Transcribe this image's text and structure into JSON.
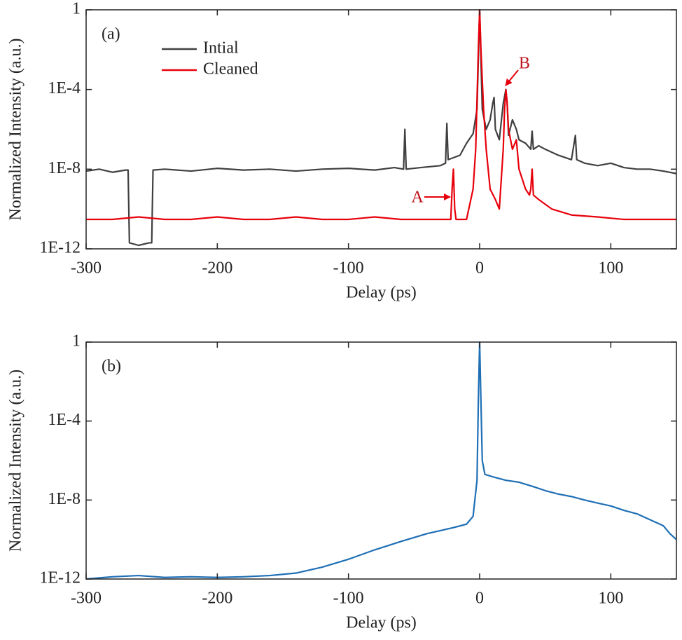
{
  "chart_data": [
    {
      "type": "line",
      "panel_label": "(a)",
      "x_label": "Delay (ps)",
      "y_label": "Normalized Intensity (a.u.)",
      "xlim": [
        -300,
        150
      ],
      "xticks": [
        -300,
        -200,
        -100,
        0,
        100
      ],
      "ylim": [
        1e-12,
        1
      ],
      "yticks": [
        {
          "value": 1e-12,
          "label": "1E-12"
        },
        {
          "value": 1e-08,
          "label": "1E-8"
        },
        {
          "value": 0.0001,
          "label": "1E-4"
        },
        1
      ],
      "log_y": true,
      "legend": "upper left",
      "annotations": [
        "A",
        "B"
      ],
      "series": [
        {
          "name": "Intial",
          "color": "#404040",
          "x": [
            -300,
            -290,
            -280,
            -270,
            -268,
            -267,
            -260,
            -252,
            -250,
            -249,
            -240,
            -220,
            -200,
            -180,
            -160,
            -140,
            -120,
            -100,
            -80,
            -65,
            -58,
            -57,
            -56,
            -45,
            -30,
            -26,
            -25,
            -24,
            -15,
            -10,
            -5,
            -2,
            0,
            2,
            5,
            8,
            10,
            11,
            12,
            15,
            18,
            20,
            21,
            22,
            25,
            28,
            30,
            35,
            39,
            40,
            41,
            45,
            50,
            60,
            70,
            73,
            74,
            80,
            90,
            100,
            110,
            120,
            130,
            140,
            150
          ],
          "values": [
            8e-09,
            1e-08,
            7e-09,
            9e-09,
            9e-09,
            2e-12,
            1.5e-12,
            2e-12,
            2e-12,
            9e-09,
            1e-08,
            8e-09,
            1.1e-08,
            9e-09,
            1e-08,
            8e-09,
            1e-08,
            1.1e-08,
            9e-09,
            1.2e-08,
            1e-08,
            1e-06,
            1e-08,
            1.2e-08,
            1.5e-08,
            2e-08,
            2e-06,
            3e-08,
            5e-08,
            2e-07,
            6e-07,
            1e-05,
            1,
            1e-05,
            1e-06,
            3e-06,
            2e-05,
            4e-05,
            1e-06,
            3e-07,
            2e-05,
            0.0001,
            2e-05,
            5e-07,
            3e-06,
            1e-06,
            3e-07,
            2e-07,
            1e-07,
            8e-07,
            1e-07,
            1.5e-07,
            1e-07,
            5e-08,
            3e-08,
            5e-07,
            3e-08,
            2e-08,
            1.5e-08,
            2e-08,
            1.2e-08,
            1e-08,
            1e-08,
            8e-09,
            6e-09
          ]
        },
        {
          "name": "Cleaned",
          "color": "#e8000b",
          "x": [
            -300,
            -280,
            -260,
            -240,
            -220,
            -200,
            -180,
            -160,
            -140,
            -120,
            -100,
            -80,
            -60,
            -40,
            -22,
            -21,
            -20,
            -19,
            -18,
            -10,
            -5,
            -3,
            -1,
            0,
            1,
            3,
            5,
            8,
            12,
            15,
            18,
            19,
            20,
            21,
            22,
            25,
            28,
            30,
            35,
            38,
            39,
            40,
            41,
            45,
            55,
            70,
            90,
            110,
            130,
            150
          ],
          "values": [
            3e-11,
            3e-11,
            4e-11,
            3e-11,
            3e-11,
            4e-11,
            3e-11,
            3e-11,
            4e-11,
            3e-11,
            3e-11,
            4e-11,
            3e-11,
            3e-11,
            3e-11,
            1e-09,
            1e-08,
            1e-10,
            3e-11,
            3e-11,
            1e-09,
            1e-07,
            0.01,
            1,
            0.01,
            1e-05,
            1e-07,
            1e-09,
            3e-10,
            1e-10,
            1e-07,
            1e-05,
            0.0001,
            2e-05,
            1e-06,
            1e-07,
            3e-07,
            1e-08,
            1e-09,
            5e-10,
            1e-09,
            1e-08,
            5e-10,
            3e-10,
            1e-10,
            5e-11,
            4e-11,
            3e-11,
            3e-11,
            3e-11
          ]
        }
      ]
    },
    {
      "type": "line",
      "panel_label": "(b)",
      "x_label": "Delay (ps)",
      "y_label": "Normalized Intensity (a.u.)",
      "xlim": [
        -300,
        150
      ],
      "xticks": [
        -300,
        -200,
        -100,
        0,
        100
      ],
      "ylim": [
        1e-12,
        1
      ],
      "yticks": [
        {
          "value": 1e-12,
          "label": "1E-12"
        },
        {
          "value": 1e-08,
          "label": "1E-8"
        },
        {
          "value": 0.0001,
          "label": "1E-4"
        },
        1
      ],
      "log_y": true,
      "series": [
        {
          "color": "#1f6fb5",
          "x": [
            -300,
            -280,
            -260,
            -240,
            -220,
            -200,
            -180,
            -160,
            -140,
            -120,
            -100,
            -80,
            -60,
            -40,
            -20,
            -10,
            -5,
            -2,
            -1,
            0,
            1,
            2,
            4,
            10,
            20,
            30,
            40,
            50,
            60,
            70,
            80,
            90,
            100,
            110,
            120,
            130,
            140,
            145,
            150
          ],
          "values": [
            1e-12,
            1.3e-12,
            1.5e-12,
            1.2e-12,
            1.3e-12,
            1.2e-12,
            1.3e-12,
            1.5e-12,
            2e-12,
            4e-12,
            1e-11,
            3e-11,
            8e-11,
            2e-10,
            4e-10,
            6e-10,
            1.5e-09,
            1e-07,
            0.001,
            1,
            0.001,
            1e-06,
            2e-07,
            1.5e-07,
            1e-07,
            8e-08,
            5e-08,
            3e-08,
            2e-08,
            1.5e-08,
            1e-08,
            7e-09,
            5e-09,
            3e-09,
            2e-09,
            1e-09,
            5e-10,
            2e-10,
            1e-10
          ]
        }
      ]
    }
  ]
}
